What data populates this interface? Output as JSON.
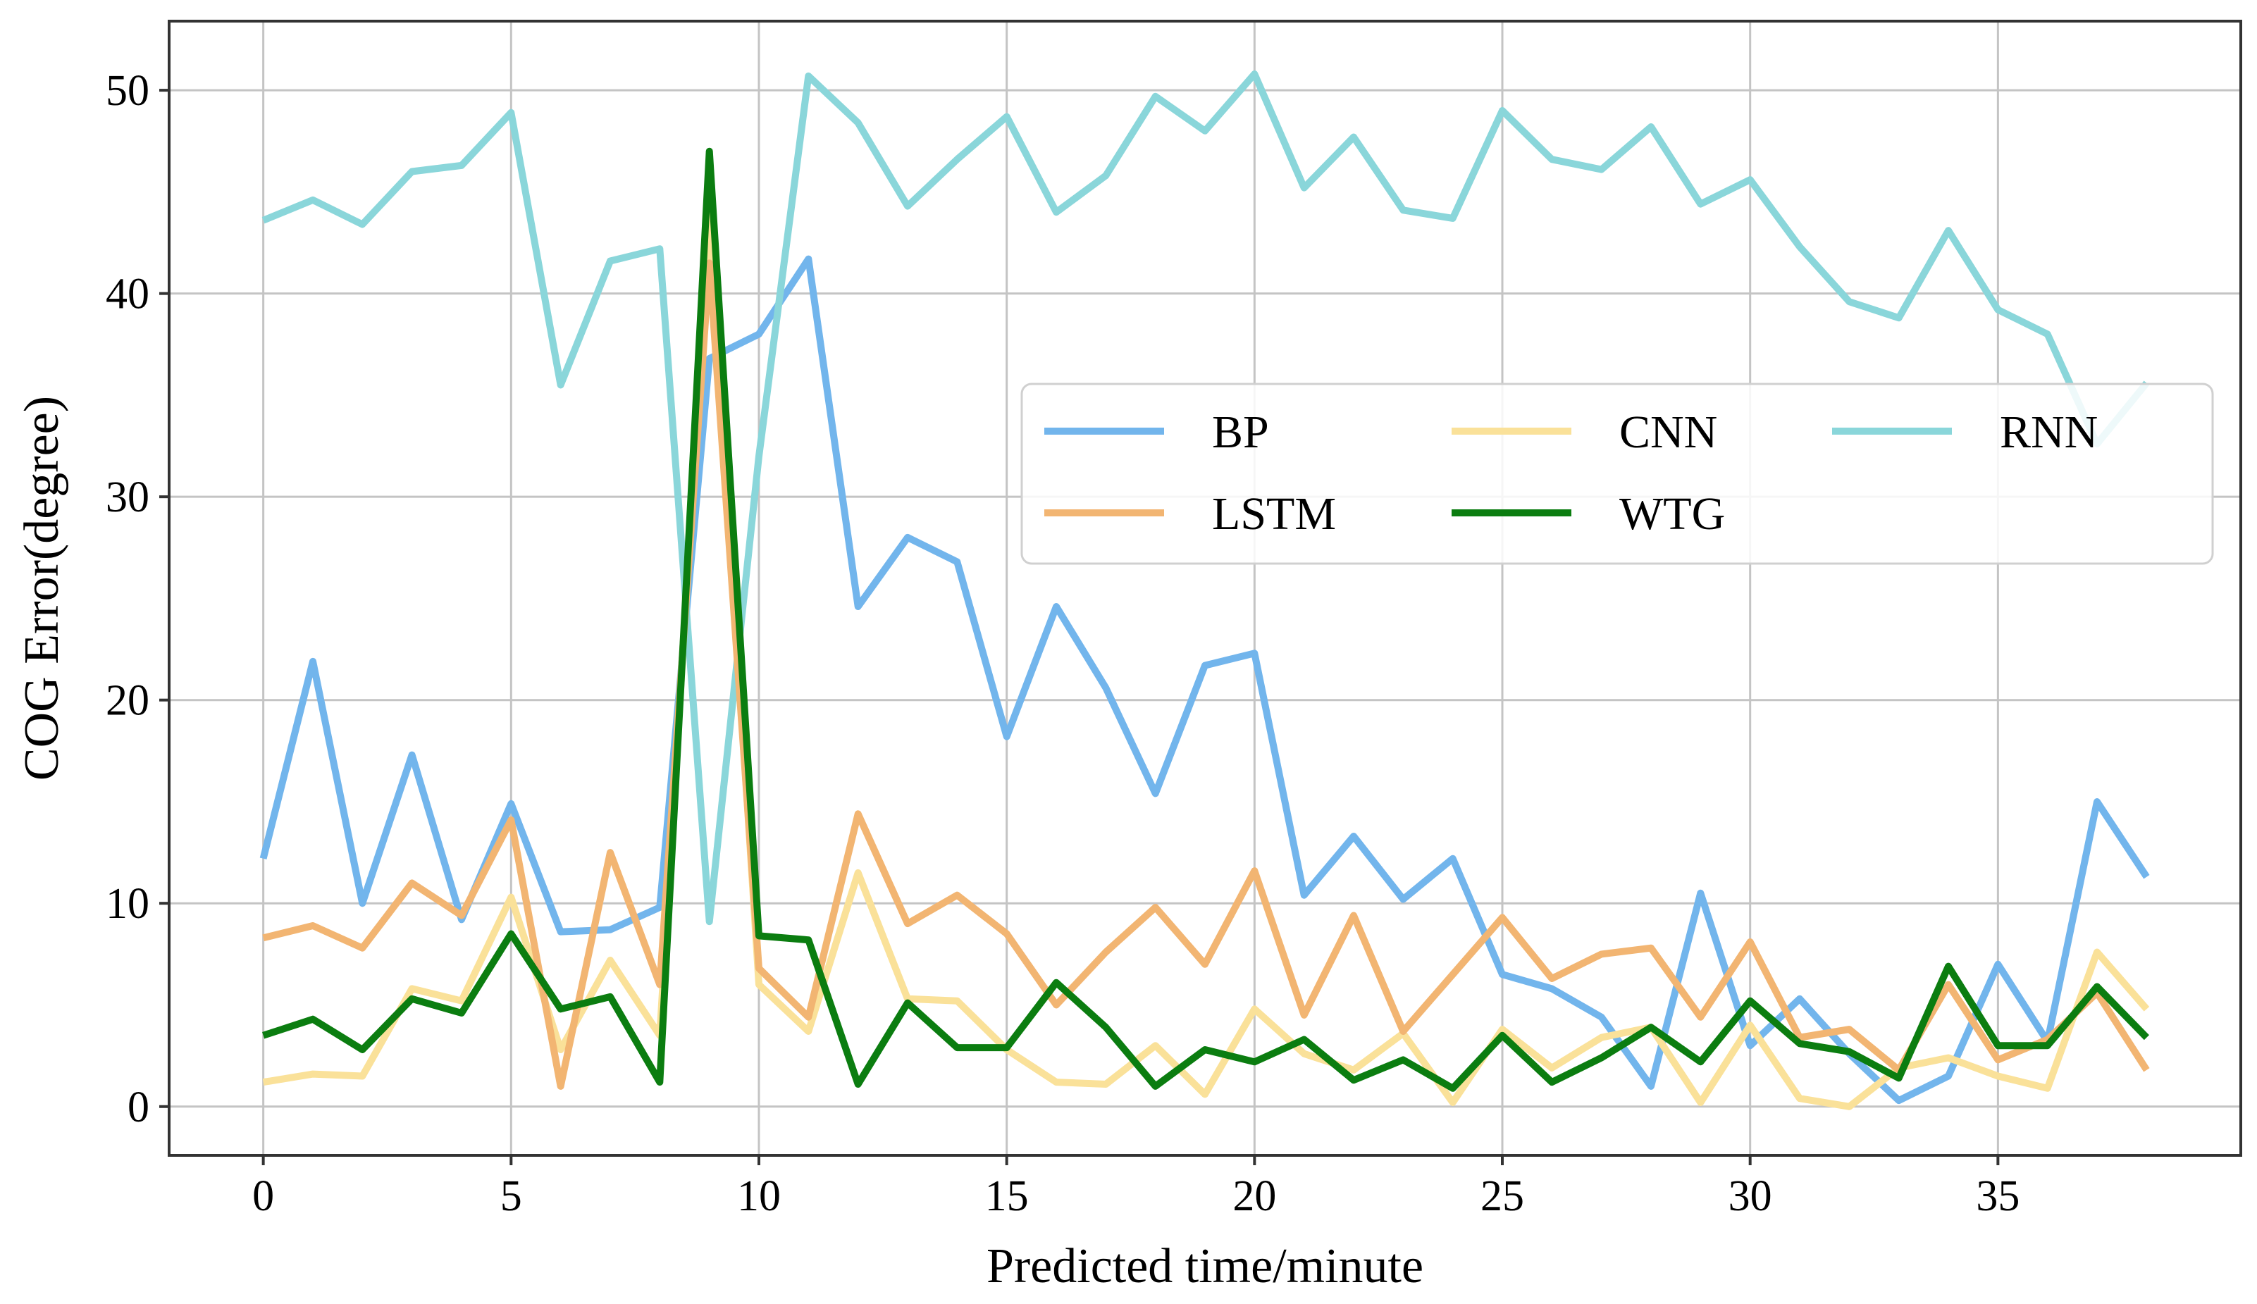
{
  "chart_data": {
    "type": "line",
    "title": "",
    "xlabel": "Predicted time/minute",
    "ylabel": "COG Error(degree)",
    "xlim": [
      -1.9,
      39.9
    ],
    "ylim": [
      -2.4,
      53.4
    ],
    "xticks": [
      0,
      5,
      10,
      15,
      20,
      25,
      30,
      35
    ],
    "yticks": [
      0,
      10,
      20,
      30,
      40,
      50
    ],
    "grid": true,
    "legend_position": "center-right",
    "x": [
      0,
      1,
      2,
      3,
      4,
      5,
      6,
      7,
      8,
      9,
      10,
      11,
      12,
      13,
      14,
      15,
      16,
      17,
      18,
      19,
      20,
      21,
      22,
      23,
      24,
      25,
      26,
      27,
      28,
      29,
      30,
      31,
      32,
      33,
      34,
      35,
      36,
      37,
      38
    ],
    "series": [
      {
        "name": "BP",
        "color": "#72b5ec",
        "values": [
          12.2,
          21.9,
          10.0,
          17.3,
          9.2,
          14.9,
          8.6,
          8.7,
          9.8,
          36.8,
          38.0,
          41.7,
          24.6,
          28.0,
          26.8,
          18.2,
          24.6,
          20.6,
          15.4,
          21.7,
          22.3,
          10.4,
          13.3,
          10.2,
          12.2,
          6.5,
          5.8,
          4.4,
          1.0,
          10.5,
          3.0,
          5.3,
          2.6,
          0.3,
          1.5,
          7.0,
          3.2,
          15.0,
          11.3
        ]
      },
      {
        "name": "CNN",
        "color": "#fae199",
        "values": [
          1.2,
          1.6,
          1.5,
          5.8,
          5.2,
          10.3,
          2.8,
          7.2,
          3.5,
          44.0,
          6.0,
          3.7,
          11.5,
          5.3,
          5.2,
          2.8,
          1.2,
          1.1,
          3.0,
          0.6,
          4.8,
          2.6,
          1.8,
          3.6,
          0.2,
          3.8,
          1.9,
          3.4,
          3.9,
          0.2,
          4.0,
          0.4,
          0.0,
          1.9,
          2.4,
          1.5,
          0.9,
          7.6,
          4.8
        ]
      },
      {
        "name": "RNN",
        "color": "#8ad6da",
        "values": [
          43.6,
          44.6,
          43.4,
          46.0,
          46.3,
          48.9,
          35.5,
          41.6,
          42.2,
          9.1,
          32.0,
          50.7,
          48.4,
          44.3,
          46.6,
          48.7,
          44.0,
          45.8,
          49.7,
          48.0,
          50.8,
          45.2,
          47.7,
          44.1,
          43.7,
          49.0,
          46.6,
          46.1,
          48.2,
          44.4,
          45.6,
          42.3,
          39.6,
          38.8,
          43.1,
          39.2,
          38.0,
          32.6,
          35.6
        ]
      },
      {
        "name": "LSTM",
        "color": "#f2b572",
        "values": [
          8.3,
          8.9,
          7.8,
          11.0,
          9.4,
          14.1,
          1.0,
          12.5,
          6.0,
          41.5,
          6.8,
          4.4,
          14.4,
          9.0,
          10.4,
          8.5,
          5.0,
          7.6,
          9.8,
          7.0,
          11.6,
          4.5,
          9.4,
          3.7,
          6.5,
          9.3,
          6.3,
          7.5,
          7.8,
          4.4,
          8.1,
          3.4,
          3.8,
          1.8,
          6.0,
          2.3,
          3.3,
          5.6,
          1.8
        ]
      },
      {
        "name": "WTG",
        "color": "#0b7d10",
        "values": [
          3.5,
          4.3,
          2.8,
          5.3,
          4.6,
          8.5,
          4.8,
          5.4,
          1.2,
          47.0,
          8.4,
          8.2,
          1.1,
          5.1,
          2.9,
          2.9,
          6.1,
          3.9,
          1.0,
          2.8,
          2.2,
          3.3,
          1.3,
          2.3,
          0.9,
          3.5,
          1.2,
          2.4,
          3.9,
          2.2,
          5.2,
          3.1,
          2.7,
          1.4,
          6.9,
          3.0,
          3.0,
          5.9,
          3.4
        ]
      }
    ]
  }
}
